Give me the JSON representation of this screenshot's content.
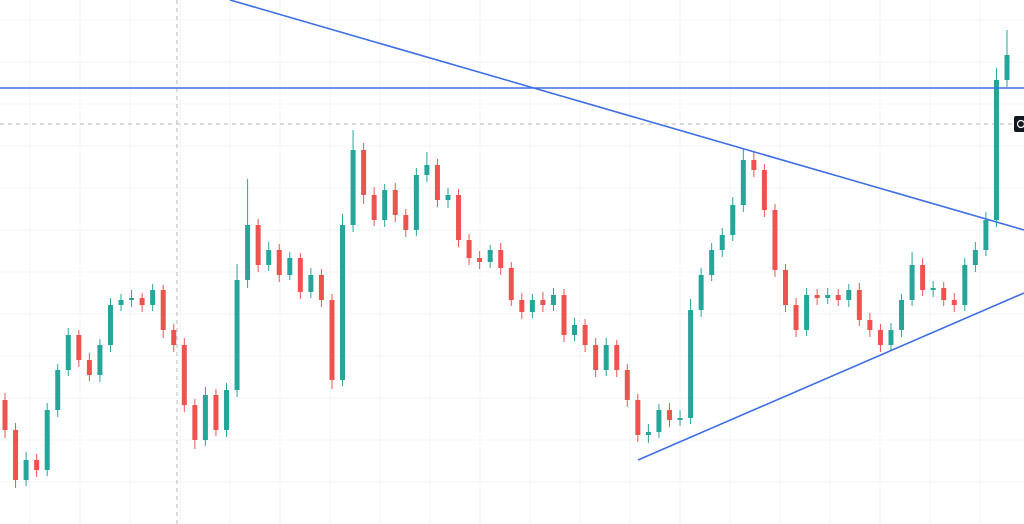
{
  "chart_data": {
    "type": "candlestick",
    "ylim": [
      0,
      524
    ],
    "up_color": "#26a69a",
    "down_color": "#ef5350",
    "grid": true,
    "series": [
      {
        "open": [
          124,
          94,
          44,
          64,
          54,
          114,
          154,
          189,
          164,
          149,
          179,
          219,
          224,
          226,
          219,
          234,
          194,
          179,
          119,
          84,
          129,
          94,
          134,
          244,
          299,
          259,
          274,
          249,
          266,
          232,
          249,
          224,
          144,
          299,
          374,
          329,
          304,
          334,
          309,
          294,
          349,
          359,
          324,
          329,
          284,
          266,
          262,
          274,
          256,
          224,
          212,
          224,
          219,
          229,
          189,
          199,
          179,
          154,
          179,
          154,
          124,
          89,
          92,
          114,
          104,
          106,
          214,
          249,
          274,
          289,
          319,
          364,
          354,
          314,
          254,
          219,
          194,
          229,
          226,
          229,
          224,
          234,
          204,
          194,
          179,
          194,
          224,
          259,
          234,
          236,
          224,
          219,
          259,
          274,
          304,
          444
        ],
        "high": [
          131,
          101,
          72,
          70,
          121,
          160,
          196,
          194,
          171,
          185,
          226,
          230,
          234,
          231,
          240,
          239,
          200,
          186,
          125,
          137,
          135,
          141,
          260,
          345,
          305,
          282,
          280,
          272,
          271,
          256,
          255,
          230,
          310,
          394,
          381,
          337,
          340,
          341,
          315,
          356,
          372,
          365,
          336,
          335,
          290,
          273,
          279,
          281,
          262,
          231,
          230,
          232,
          236,
          235,
          206,
          205,
          186,
          186,
          184,
          160,
          130,
          100,
          120,
          121,
          114,
          225,
          256,
          281,
          296,
          327,
          375,
          372,
          360,
          320,
          260,
          226,
          236,
          235,
          236,
          235,
          240,
          241,
          211,
          200,
          201,
          230,
          272,
          266,
          243,
          242,
          231,
          266,
          282,
          312,
          456,
          494
        ],
        "low": [
          86,
          36,
          38,
          47,
          48,
          107,
          148,
          157,
          143,
          142,
          172,
          213,
          217,
          212,
          213,
          186,
          172,
          112,
          75,
          78,
          88,
          87,
          127,
          236,
          252,
          253,
          242,
          244,
          225,
          226,
          217,
          135,
          138,
          292,
          320,
          298,
          297,
          302,
          287,
          288,
          342,
          317,
          316,
          277,
          259,
          255,
          256,
          249,
          218,
          205,
          206,
          212,
          213,
          182,
          183,
          172,
          147,
          148,
          147,
          117,
          82,
          81,
          86,
          97,
          98,
          100,
          207,
          243,
          267,
          283,
          312,
          347,
          307,
          247,
          212,
          187,
          188,
          219,
          220,
          218,
          217,
          198,
          187,
          172,
          173,
          187,
          218,
          228,
          227,
          218,
          212,
          213,
          252,
          268,
          297,
          437
        ],
        "close": [
          94,
          44,
          64,
          54,
          114,
          154,
          189,
          164,
          149,
          179,
          219,
          224,
          226,
          219,
          234,
          194,
          179,
          119,
          84,
          129,
          94,
          134,
          244,
          299,
          259,
          274,
          249,
          266,
          232,
          249,
          224,
          144,
          299,
          374,
          329,
          304,
          334,
          309,
          294,
          349,
          359,
          324,
          329,
          284,
          266,
          262,
          274,
          256,
          224,
          212,
          224,
          219,
          229,
          189,
          199,
          179,
          154,
          179,
          154,
          124,
          89,
          92,
          114,
          104,
          106,
          214,
          249,
          274,
          289,
          319,
          364,
          354,
          314,
          254,
          219,
          194,
          229,
          226,
          229,
          224,
          234,
          204,
          194,
          179,
          194,
          224,
          259,
          234,
          236,
          224,
          219,
          259,
          274,
          304,
          444,
          469
        ]
      }
    ]
  }
}
